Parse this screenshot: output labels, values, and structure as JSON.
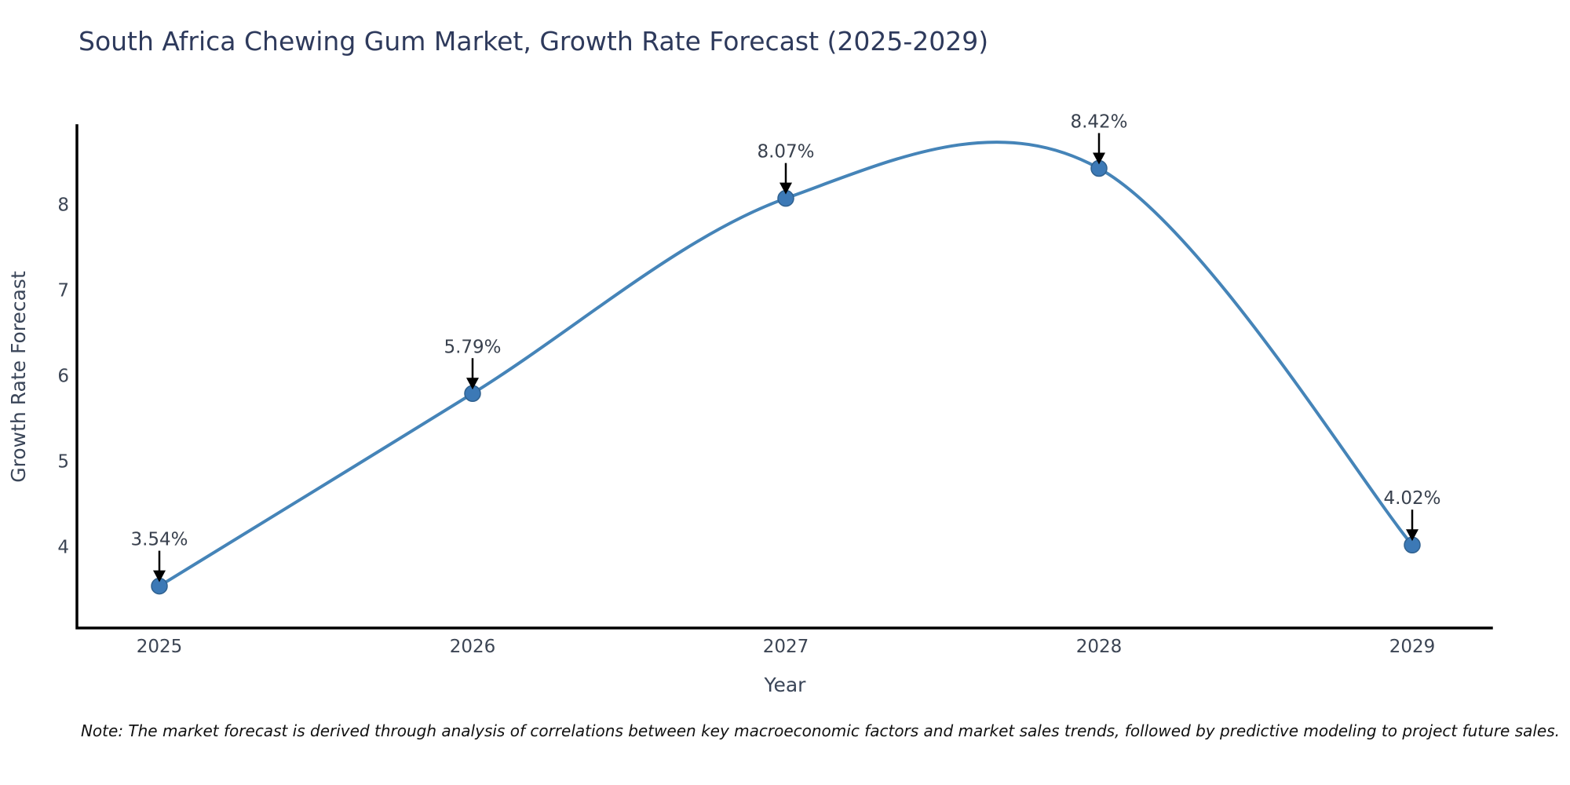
{
  "title": "South Africa Chewing Gum Market, Growth Rate Forecast (2025-2029)",
  "note": "Note: The market forecast is derived through analysis of correlations between key macroeconomic factors and market sales trends, followed by predictive modeling to project future sales.",
  "chart_data": {
    "type": "line",
    "line_shape": "spline",
    "x": [
      2025,
      2026,
      2027,
      2028,
      2029
    ],
    "values": [
      3.54,
      5.79,
      8.07,
      8.42,
      4.02
    ],
    "point_labels": [
      "3.54%",
      "5.79%",
      "8.07%",
      "8.42%",
      "4.02%"
    ],
    "title": "South Africa Chewing Gum Market, Growth Rate Forecast (2025-2029)",
    "xlabel": "Year",
    "ylabel": "Growth Rate Forecast",
    "yticks": [
      4,
      5,
      6,
      7,
      8
    ],
    "ylim": [
      3.05,
      8.92
    ],
    "grid": false,
    "legend": "none",
    "annotation_style": "value label with downward black arrow to marker",
    "colors": {
      "line": "#4584b8",
      "marker_fill": "#3c79b6",
      "marker_edge": "#30618f",
      "axis": "#000000",
      "arrow": "#000000",
      "title_text": "#2e3a5c",
      "tick_text": "#3c4554",
      "note_text": "#111111",
      "background": "#ffffff"
    }
  }
}
